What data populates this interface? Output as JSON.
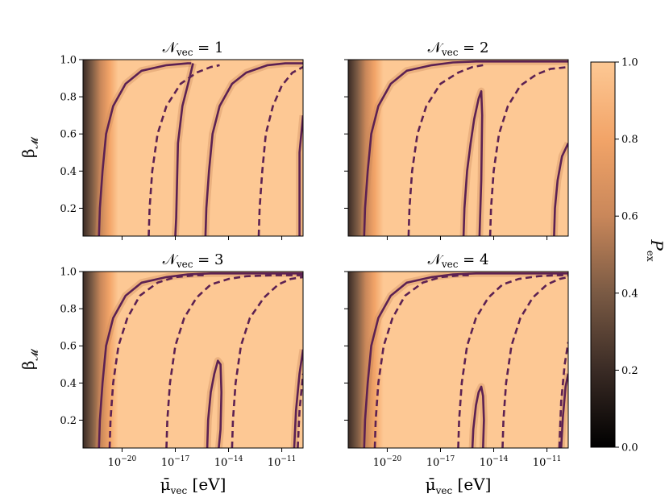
{
  "chart_data": {
    "type": "heatmap",
    "colormap": [
      "#000000",
      "#3a2b25",
      "#7a5a44",
      "#c9875a",
      "#f2a468",
      "#fdc894"
    ],
    "contour_color": "#5c2152",
    "colorbar": {
      "label_main": "P",
      "label_sub": "ex",
      "range": [
        0.0,
        1.0
      ],
      "ticks": [
        0.0,
        0.2,
        0.4,
        0.6,
        0.8,
        1.0
      ],
      "tick_labels": [
        "0.0",
        "0.2",
        "0.4",
        "0.6",
        "0.8",
        "1.0"
      ]
    },
    "xaxis": {
      "scale": "log",
      "range_log10": [
        -22.2,
        -9.8
      ],
      "ticks_log10": [
        -20,
        -17,
        -14,
        -11
      ],
      "tick_base": "10",
      "tick_exponents": [
        "−20",
        "−17",
        "−14",
        "−11"
      ],
      "label_main": "μ̄",
      "label_sub": "vec",
      "label_unit": "[eV]"
    },
    "yaxis": {
      "range": [
        0.05,
        1.0
      ],
      "ticks": [
        0.2,
        0.4,
        0.6,
        0.8,
        1.0
      ],
      "tick_labels": [
        "0.2",
        "0.4",
        "0.6",
        "0.8",
        "1.0"
      ],
      "label_main": "β",
      "label_sub": "𝓜"
    },
    "panels": [
      {
        "title_main": "𝒩",
        "title_sub": "vec",
        "title_rest": " = 1",
        "solid_contours": [
          {
            "x_log10": [
              -21.3,
              -21.25,
              -21.1,
              -20.9,
              -20.5,
              -19.8,
              -18.9,
              -17.5,
              -16.3,
              -16.1
            ],
            "y": [
              0.05,
              0.2,
              0.4,
              0.6,
              0.75,
              0.87,
              0.94,
              0.97,
              0.98,
              0.98
            ]
          },
          {
            "x_log10": [
              -16.0,
              -16.2,
              -16.6,
              -16.85,
              -16.9,
              -16.95,
              -17.0
            ],
            "y": [
              0.98,
              0.9,
              0.75,
              0.55,
              0.35,
              0.15,
              0.05
            ]
          },
          {
            "x_log10": [
              -15.3,
              -15.25,
              -15.1,
              -14.9,
              -14.5,
              -13.8,
              -13.0,
              -11.8,
              -10.8,
              -9.8
            ],
            "y": [
              0.05,
              0.2,
              0.4,
              0.6,
              0.75,
              0.87,
              0.93,
              0.97,
              0.98,
              0.98
            ]
          },
          {
            "x_log10": [
              -10.0,
              -10.0,
              -9.8
            ],
            "y": [
              0.05,
              0.5,
              0.7
            ]
          }
        ],
        "dashed_contours": [
          {
            "x_log10": [
              -18.5,
              -18.45,
              -18.3,
              -18.0,
              -17.5,
              -16.7,
              -15.8,
              -15.0,
              -14.5
            ],
            "y": [
              0.05,
              0.2,
              0.4,
              0.6,
              0.75,
              0.87,
              0.93,
              0.96,
              0.97
            ]
          },
          {
            "x_log10": [
              -12.3,
              -12.25,
              -12.1,
              -11.9,
              -11.5,
              -11.0,
              -10.4,
              -9.8
            ],
            "y": [
              0.05,
              0.2,
              0.4,
              0.6,
              0.75,
              0.86,
              0.93,
              0.96
            ]
          }
        ]
      },
      {
        "title_main": "𝒩",
        "title_sub": "vec",
        "title_rest": " = 2",
        "solid_contours": [
          {
            "x_log10": [
              -21.3,
              -21.25,
              -21.1,
              -20.9,
              -20.5,
              -19.8,
              -18.9,
              -17.5,
              -16.3,
              -15.0,
              -14.0,
              -13.0,
              -12.0,
              -11.0,
              -9.8
            ],
            "y": [
              0.05,
              0.2,
              0.4,
              0.6,
              0.75,
              0.87,
              0.94,
              0.97,
              0.985,
              0.99,
              0.99,
              0.99,
              0.99,
              0.99,
              0.99
            ]
          },
          {
            "x_log10": [
              -15.7,
              -15.65,
              -15.5,
              -15.3,
              -15.1,
              -14.85,
              -14.7,
              -14.65,
              -14.7,
              -14.8
            ],
            "y": [
              0.05,
              0.2,
              0.4,
              0.55,
              0.68,
              0.79,
              0.83,
              0.7,
              0.35,
              0.05
            ]
          },
          {
            "x_log10": [
              -10.6,
              -10.55,
              -10.4,
              -10.15,
              -9.8
            ],
            "y": [
              0.05,
              0.2,
              0.35,
              0.48,
              0.55
            ]
          }
        ],
        "dashed_contours": [
          {
            "x_log10": [
              -18.8,
              -18.75,
              -18.6,
              -18.3,
              -17.8,
              -17.0,
              -16.0,
              -15.2,
              -14.6
            ],
            "y": [
              0.05,
              0.2,
              0.4,
              0.6,
              0.75,
              0.87,
              0.93,
              0.96,
              0.97
            ]
          },
          {
            "x_log10": [
              -14.2,
              -14.15,
              -14.0,
              -13.7,
              -13.2,
              -12.5,
              -11.6,
              -10.8,
              -9.8
            ],
            "y": [
              0.05,
              0.2,
              0.4,
              0.6,
              0.75,
              0.86,
              0.92,
              0.95,
              0.96
            ]
          }
        ]
      },
      {
        "title_main": "𝒩",
        "title_sub": "vec",
        "title_rest": " = 3",
        "solid_contours": [
          {
            "x_log10": [
              -21.3,
              -21.25,
              -21.1,
              -20.9,
              -20.5,
              -19.8,
              -18.9,
              -17.5,
              -16.3,
              -15.0,
              -13.5,
              -12.0,
              -11.0,
              -9.8
            ],
            "y": [
              0.05,
              0.2,
              0.4,
              0.6,
              0.75,
              0.87,
              0.94,
              0.97,
              0.985,
              0.99,
              0.99,
              0.99,
              0.99,
              0.99
            ]
          },
          {
            "x_log10": [
              -15.2,
              -15.15,
              -15.0,
              -14.8,
              -14.6,
              -14.45,
              -14.4,
              -14.45,
              -14.55
            ],
            "y": [
              0.05,
              0.2,
              0.35,
              0.45,
              0.52,
              0.5,
              0.35,
              0.15,
              0.05
            ]
          },
          {
            "x_log10": [
              -10.3,
              -10.2,
              -10.0,
              -9.8
            ],
            "y": [
              0.05,
              0.25,
              0.45,
              0.58
            ]
          }
        ],
        "dashed_contours": [
          {
            "x_log10": [
              -20.7,
              -20.65,
              -20.5,
              -20.2,
              -19.7,
              -19.0,
              -18.0,
              -17.0,
              -15.8,
              -15.2
            ],
            "y": [
              0.05,
              0.2,
              0.4,
              0.6,
              0.75,
              0.87,
              0.94,
              0.97,
              0.98,
              0.98
            ]
          },
          {
            "x_log10": [
              -17.5,
              -17.45,
              -17.3,
              -17.0,
              -16.5,
              -15.8,
              -15.0,
              -14.0,
              -13.0,
              -11.5,
              -10.5,
              -9.8
            ],
            "y": [
              0.05,
              0.2,
              0.4,
              0.6,
              0.75,
              0.86,
              0.93,
              0.96,
              0.975,
              0.98,
              0.98,
              0.98
            ]
          },
          {
            "x_log10": [
              -13.8,
              -13.75,
              -13.6,
              -13.3,
              -12.8,
              -12.0,
              -11.2,
              -10.5,
              -9.8
            ],
            "y": [
              0.05,
              0.2,
              0.4,
              0.6,
              0.75,
              0.86,
              0.93,
              0.96,
              0.97
            ]
          },
          {
            "x_log10": [
              -10.1,
              -10.0,
              -9.8
            ],
            "y": [
              0.05,
              0.25,
              0.45
            ]
          }
        ]
      },
      {
        "title_main": "𝒩",
        "title_sub": "vec",
        "title_rest": " = 4",
        "solid_contours": [
          {
            "x_log10": [
              -21.3,
              -21.25,
              -21.1,
              -20.9,
              -20.5,
              -19.8,
              -18.9,
              -17.5,
              -16.3,
              -15.0,
              -13.5,
              -12.0,
              -11.0,
              -9.8
            ],
            "y": [
              0.05,
              0.2,
              0.4,
              0.6,
              0.75,
              0.87,
              0.94,
              0.97,
              0.985,
              0.99,
              0.99,
              0.99,
              0.99,
              0.99
            ]
          },
          {
            "x_log10": [
              -15.2,
              -15.15,
              -15.0,
              -14.85,
              -14.7,
              -14.6,
              -14.55,
              -14.6
            ],
            "y": [
              0.05,
              0.15,
              0.28,
              0.35,
              0.38,
              0.33,
              0.2,
              0.05
            ]
          },
          {
            "x_log10": [
              -10.2,
              -10.1,
              -9.95,
              -9.8
            ],
            "y": [
              0.05,
              0.22,
              0.38,
              0.45
            ]
          }
        ],
        "dashed_contours": [
          {
            "x_log10": [
              -20.7,
              -20.65,
              -20.5,
              -20.2,
              -19.7,
              -19.0,
              -18.0,
              -17.0,
              -15.8,
              -15.2
            ],
            "y": [
              0.05,
              0.2,
              0.4,
              0.6,
              0.75,
              0.87,
              0.94,
              0.97,
              0.98,
              0.98
            ]
          },
          {
            "x_log10": [
              -16.0,
              -15.95,
              -15.8,
              -15.5,
              -15.0,
              -14.3,
              -13.5,
              -12.6,
              -11.5,
              -10.5,
              -9.8
            ],
            "y": [
              0.05,
              0.2,
              0.4,
              0.6,
              0.75,
              0.86,
              0.93,
              0.96,
              0.975,
              0.98,
              0.98
            ]
          },
          {
            "x_log10": [
              -13.5,
              -13.45,
              -13.3,
              -13.0,
              -12.5,
              -11.8,
              -11.0,
              -10.3,
              -9.8
            ],
            "y": [
              0.05,
              0.2,
              0.4,
              0.6,
              0.75,
              0.86,
              0.93,
              0.96,
              0.97
            ]
          },
          {
            "x_log10": [
              -10.3,
              -10.2,
              -10.0,
              -9.8
            ],
            "y": [
              0.05,
              0.3,
              0.5,
              0.62
            ]
          }
        ]
      }
    ]
  }
}
